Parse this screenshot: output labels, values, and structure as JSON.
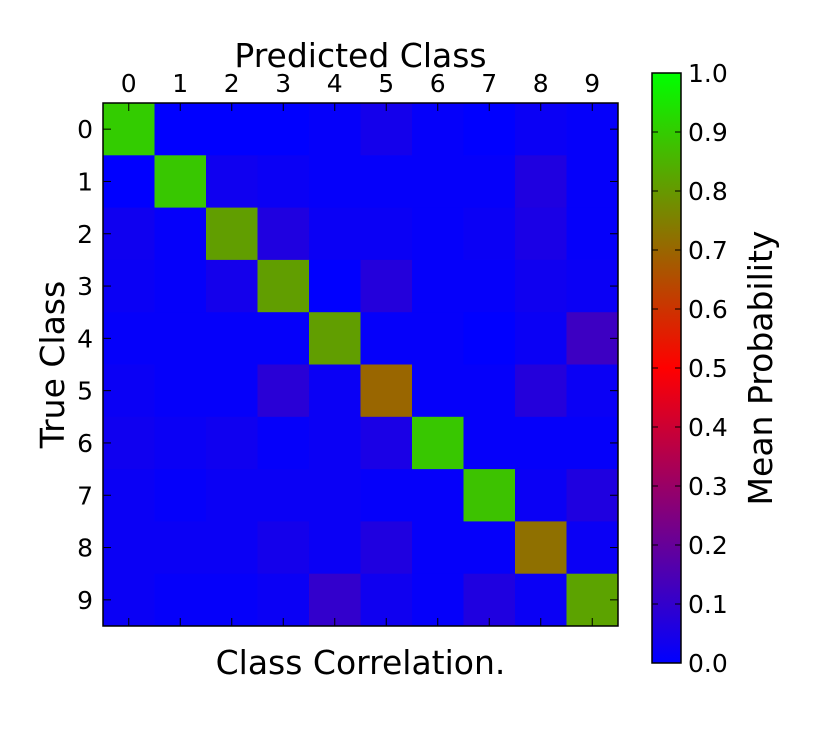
{
  "chart_data": {
    "type": "heatmap",
    "title": "Predicted Class",
    "xlabel": "Predicted Class",
    "ylabel": "True Class",
    "caption": "Class Correlation.",
    "x_categories": [
      "0",
      "1",
      "2",
      "3",
      "4",
      "5",
      "6",
      "7",
      "8",
      "9"
    ],
    "y_categories": [
      "0",
      "1",
      "2",
      "3",
      "4",
      "5",
      "6",
      "7",
      "8",
      "9"
    ],
    "values": [
      [
        0.9,
        0.0,
        0.0,
        0.0,
        0.01,
        0.04,
        0.01,
        0.0,
        0.02,
        0.01
      ],
      [
        0.0,
        0.89,
        0.03,
        0.02,
        0.01,
        0.01,
        0.01,
        0.01,
        0.06,
        0.01
      ],
      [
        0.03,
        0.01,
        0.81,
        0.06,
        0.02,
        0.02,
        0.01,
        0.02,
        0.05,
        0.01
      ],
      [
        0.02,
        0.01,
        0.04,
        0.81,
        0.0,
        0.07,
        0.01,
        0.01,
        0.03,
        0.02
      ],
      [
        0.01,
        0.01,
        0.01,
        0.01,
        0.81,
        0.01,
        0.01,
        0.0,
        0.02,
        0.12
      ],
      [
        0.02,
        0.01,
        0.01,
        0.08,
        0.02,
        0.7,
        0.01,
        0.01,
        0.07,
        0.02
      ],
      [
        0.03,
        0.02,
        0.03,
        0.01,
        0.02,
        0.05,
        0.89,
        0.01,
        0.01,
        0.01
      ],
      [
        0.02,
        0.01,
        0.02,
        0.02,
        0.02,
        0.01,
        0.01,
        0.88,
        0.02,
        0.06
      ],
      [
        0.02,
        0.02,
        0.02,
        0.04,
        0.02,
        0.06,
        0.01,
        0.01,
        0.72,
        0.02
      ],
      [
        0.02,
        0.01,
        0.01,
        0.02,
        0.1,
        0.03,
        0.01,
        0.06,
        0.02,
        0.82
      ]
    ],
    "colorbar": {
      "label": "Mean Probability",
      "range": [
        0.0,
        1.0
      ],
      "ticks": [
        "0.0",
        "0.1",
        "0.2",
        "0.3",
        "0.4",
        "0.5",
        "0.6",
        "0.7",
        "0.8",
        "0.9",
        "1.0"
      ],
      "colormap": [
        "#0000ff",
        "#ff0000",
        "#00ff00"
      ]
    },
    "grid": false
  }
}
